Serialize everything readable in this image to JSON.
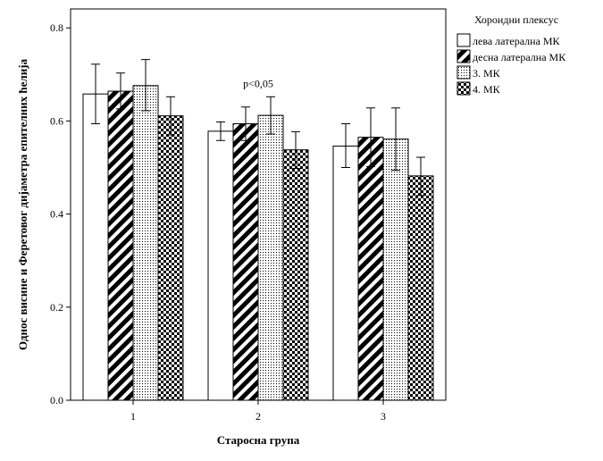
{
  "chart_data": {
    "type": "bar",
    "title": "",
    "xlabel": "Старосна група",
    "ylabel": "Однос висине и Феретовог дијаметра епителних ћелија",
    "ylim": [
      0,
      0.8
    ],
    "yticks": [
      0.0,
      0.2,
      0.4,
      0.6,
      0.8
    ],
    "ytick_labels": [
      "0.0",
      "0.2",
      "0.4",
      "0.6",
      "0.8"
    ],
    "categories": [
      "1",
      "2",
      "3"
    ],
    "legend": {
      "title": "Хороидни плексус",
      "placement": "right"
    },
    "series": [
      {
        "name": "лева латерална МК",
        "pattern": "white",
        "values": [
          0.658,
          0.578,
          0.546
        ],
        "err_low": [
          0.594,
          0.558,
          0.5
        ],
        "err_high": [
          0.722,
          0.598,
          0.594
        ]
      },
      {
        "name": "десна латерална МК",
        "pattern": "diagonal",
        "values": [
          0.664,
          0.594,
          0.565
        ],
        "err_low": [
          0.626,
          0.558,
          0.502
        ],
        "err_high": [
          0.703,
          0.63,
          0.628
        ]
      },
      {
        "name": "3. МК",
        "pattern": "dots",
        "values": [
          0.676,
          0.612,
          0.561
        ],
        "err_low": [
          0.622,
          0.572,
          0.494
        ],
        "err_high": [
          0.732,
          0.652,
          0.628
        ]
      },
      {
        "name": "4. МК",
        "pattern": "checker",
        "values": [
          0.611,
          0.538,
          0.482
        ],
        "err_low": [
          0.57,
          0.498,
          0.44
        ],
        "err_high": [
          0.652,
          0.577,
          0.522
        ]
      }
    ],
    "annotations": [
      {
        "text": "p<0,05",
        "category": "2",
        "y": 0.68
      }
    ]
  },
  "colors": {
    "background": "#ffffff",
    "axis": "#000000",
    "bar_stroke": "#000000"
  }
}
